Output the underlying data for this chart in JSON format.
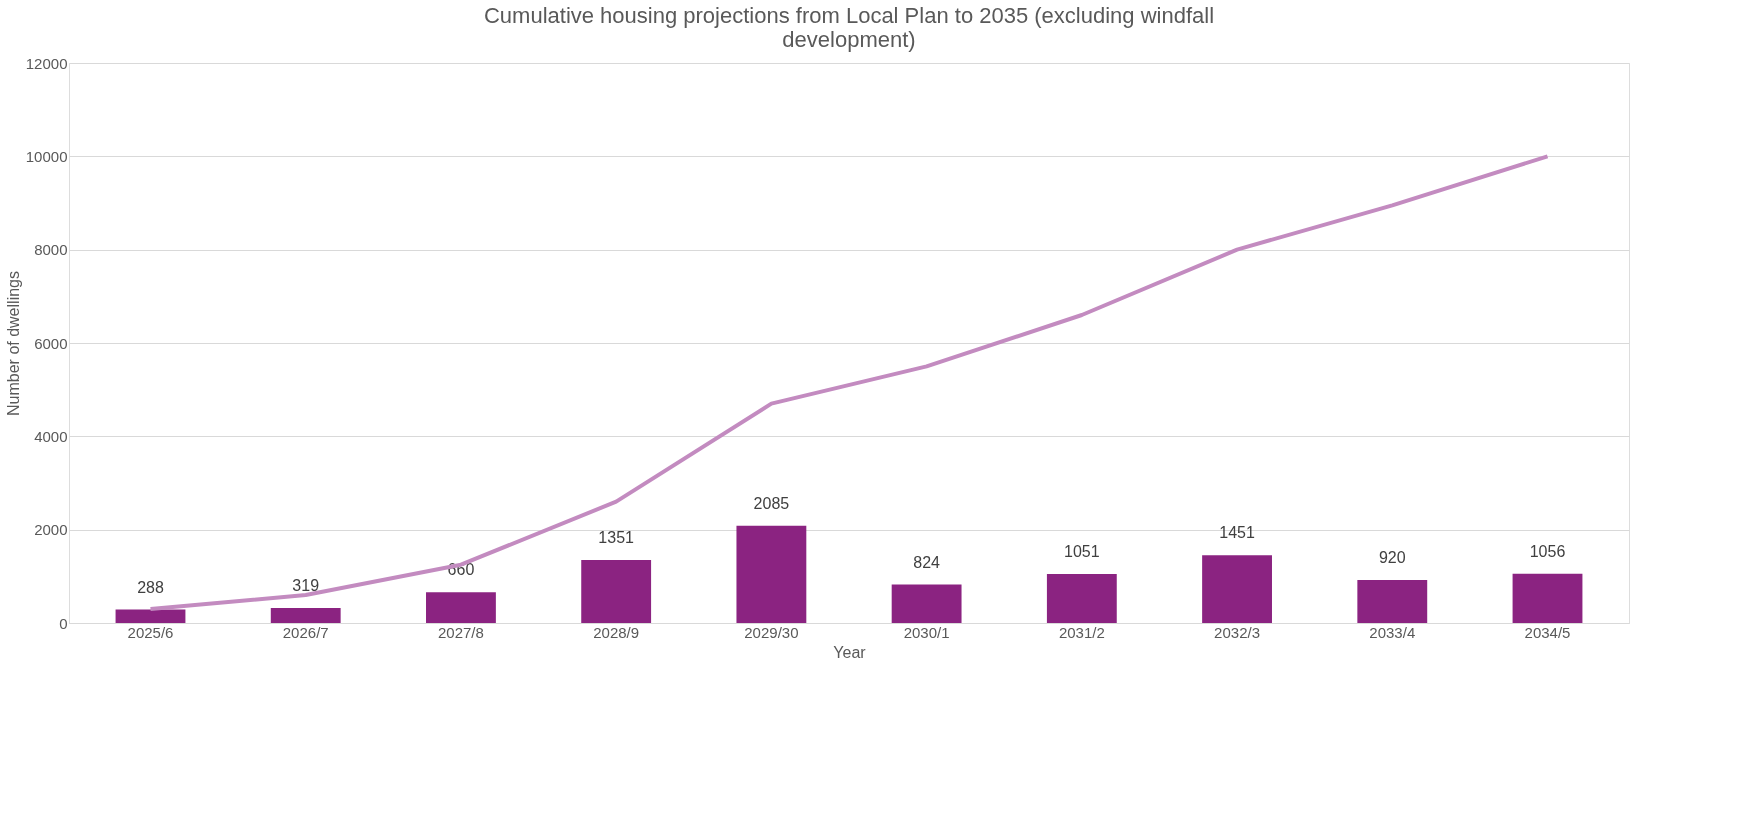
{
  "chart_data": {
    "type": "bar",
    "title": "Cumulative housing projections from Local Plan to 2035 (excluding windfall development)",
    "xlabel": "Year",
    "ylabel": "Number of dwellings",
    "categories": [
      "2025/6",
      "2026/7",
      "2027/8",
      "2028/9",
      "2029/30",
      "2030/1",
      "2031/2",
      "2032/3",
      "2033/4",
      "2034/5"
    ],
    "series": [
      {
        "color": "#8b2381",
        "values": [
          288,
          319,
          660,
          1351,
          2085,
          824,
          1051,
          1451,
          920,
          1056
        ],
        "value_labels": [
          "288",
          "319",
          "660",
          "1351",
          "2085",
          "824",
          "1051",
          "1451",
          "920",
          "1056"
        ]
      },
      {
        "type": "line",
        "color": "#c38bc0",
        "values": [
          300,
          600,
          1250,
          2600,
          4700,
          5500,
          6600,
          8000,
          8950,
          10000
        ]
      }
    ],
    "ylim": [
      0,
      12000
    ],
    "yticks": [
      0,
      2000,
      4000,
      6000,
      8000,
      10000,
      12000
    ],
    "grid": "y"
  }
}
